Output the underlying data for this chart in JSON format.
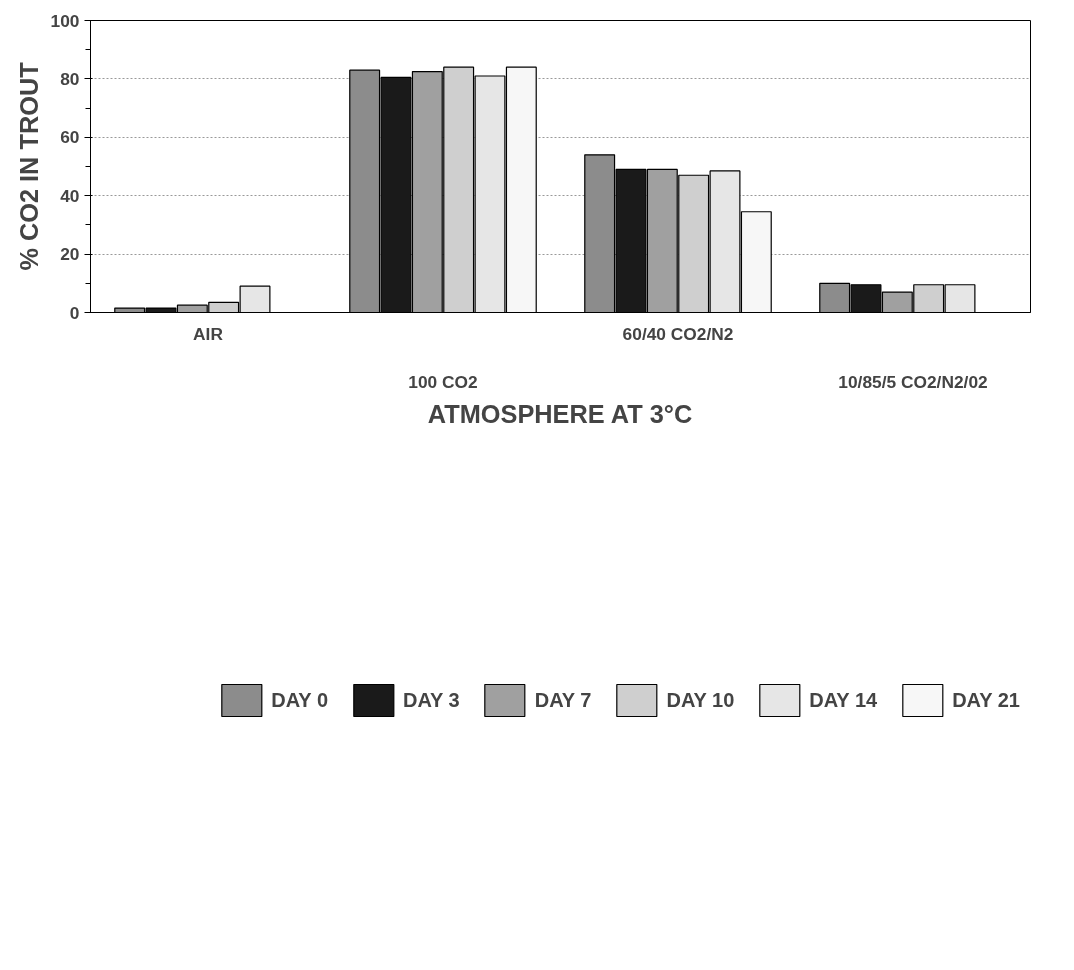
{
  "chart_data": {
    "type": "bar",
    "xlabel": "ATMOSPHERE AT 3°C",
    "ylabel": "% CO2 IN TROUT",
    "categories": [
      "AIR",
      "100 CO2",
      "60/40 CO2/N2",
      "10/85/5 CO2/N2/02"
    ],
    "series": [
      {
        "name": "DAY 0",
        "color": "#8c8c8c",
        "values": [
          1.5,
          83,
          54,
          10
        ]
      },
      {
        "name": "DAY 3",
        "color": "#1a1a1a",
        "values": [
          1.5,
          80.5,
          49,
          9.5
        ]
      },
      {
        "name": "DAY 7",
        "color": "#a0a0a0",
        "values": [
          2.5,
          82.5,
          49,
          7
        ]
      },
      {
        "name": "DAY 10",
        "color": "#cfcfcf",
        "values": [
          3.5,
          84,
          47,
          9.5
        ]
      },
      {
        "name": "DAY 14",
        "color": "#e6e6e6",
        "values": [
          9,
          81,
          48.5,
          9.5
        ]
      },
      {
        "name": "DAY 21",
        "color": "#f7f7f7",
        "values": [
          null,
          84,
          34.5,
          null
        ]
      }
    ],
    "ylim": [
      0,
      100
    ],
    "yticks": [
      0,
      20,
      40,
      60,
      80,
      100
    ],
    "grid": "y",
    "legend": "bottom"
  }
}
